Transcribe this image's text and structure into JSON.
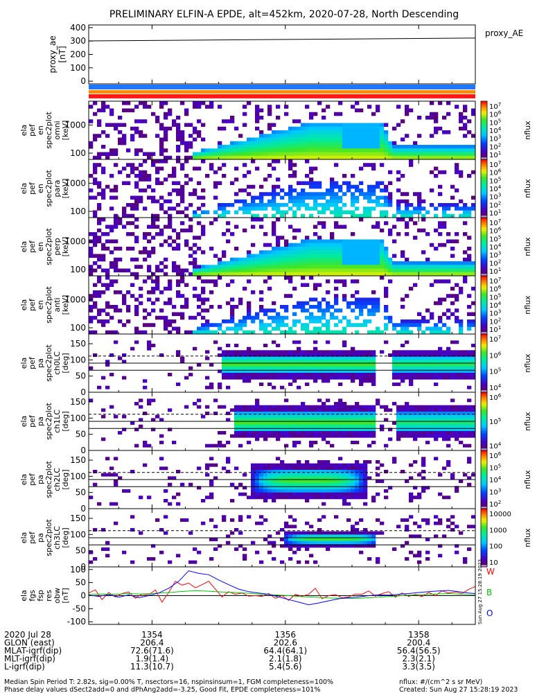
{
  "title": "PRELIMINARY ELFIN-A EPDE, alt=452km, 2020-07-28, North Descending",
  "chart_data": [
    {
      "type": "line",
      "ylabel": [
        "proxy_ae",
        "[nT]"
      ],
      "ylim": [
        -20,
        420
      ],
      "yticks": [
        0,
        100,
        200,
        300,
        400
      ],
      "legend": "proxy_AE",
      "x": [
        1353.05,
        1358.85
      ],
      "values": [
        301,
        322
      ],
      "grid": false
    },
    {
      "type": "heatmap",
      "ylabel": [
        "ela",
        "pef",
        "en",
        "spec2plot",
        "omni",
        "[keV]"
      ],
      "yscale": "log",
      "ylim": [
        60,
        7000
      ],
      "yticks": [
        100,
        1000
      ],
      "zlabel": "nflux",
      "zscale": "log",
      "zlim": [
        10,
        10000000
      ],
      "cbar_ticks": [
        "10^1",
        "10^2",
        "10^3",
        "10^4",
        "10^5",
        "10^6",
        "10^7"
      ]
    },
    {
      "type": "heatmap",
      "ylabel": [
        "ela",
        "pef",
        "en",
        "spec2plot",
        "para",
        "[keV]"
      ],
      "yscale": "log",
      "ylim": [
        60,
        7000
      ],
      "yticks": [
        100,
        1000
      ],
      "zlabel": "nflux",
      "zscale": "log",
      "zlim": [
        10,
        10000000
      ],
      "cbar_ticks": [
        "10^1",
        "10^2",
        "10^3",
        "10^4",
        "10^5",
        "10^6",
        "10^7"
      ]
    },
    {
      "type": "heatmap",
      "ylabel": [
        "ela",
        "pef",
        "en",
        "spec2plot",
        "perp",
        "[keV]"
      ],
      "yscale": "log",
      "ylim": [
        60,
        7000
      ],
      "yticks": [
        100,
        1000
      ],
      "zlabel": "nflux",
      "zscale": "log",
      "zlim": [
        10,
        10000000
      ],
      "cbar_ticks": [
        "10^1",
        "10^2",
        "10^3",
        "10^4",
        "10^5",
        "10^6",
        "10^7"
      ]
    },
    {
      "type": "heatmap",
      "ylabel": [
        "ela",
        "pef",
        "en",
        "spec2plot",
        "anti",
        "[keV]"
      ],
      "yscale": "log",
      "ylim": [
        60,
        7000
      ],
      "yticks": [
        100,
        1000
      ],
      "zlabel": "nflux",
      "zscale": "log",
      "zlim": [
        10,
        10000000
      ],
      "cbar_ticks": [
        "10^1",
        "10^2",
        "10^3",
        "10^4",
        "10^5",
        "10^6",
        "10^7"
      ]
    },
    {
      "type": "heatmap",
      "ylabel": [
        "ela",
        "pef",
        "pa",
        "spec2plot",
        "ch0LC",
        "[deg]"
      ],
      "ylim": [
        0,
        180
      ],
      "yticks": [
        0,
        50,
        100,
        150
      ],
      "zlabel": "nflux",
      "zscale": "log",
      "zlim": [
        10000,
        10000000
      ],
      "cbar_ticks": [
        "10^4",
        "10^5",
        "10^6",
        "10^7"
      ]
    },
    {
      "type": "heatmap",
      "ylabel": [
        "ela",
        "pef",
        "pa",
        "spec2plot",
        "ch1LC",
        "[deg]"
      ],
      "ylim": [
        0,
        180
      ],
      "yticks": [
        0,
        50,
        100,
        150
      ],
      "zlabel": "nflux",
      "zscale": "log",
      "zlim": [
        1000,
        1000000
      ],
      "cbar_ticks": [
        "10^4",
        "10^5",
        "10^6"
      ]
    },
    {
      "type": "heatmap",
      "ylabel": [
        "ela",
        "pef",
        "pa",
        "spec2plot",
        "ch2LC",
        "[deg]"
      ],
      "ylim": [
        0,
        180
      ],
      "yticks": [
        0,
        50,
        100,
        150
      ],
      "zlabel": "nflux",
      "zscale": "log",
      "zlim": [
        100,
        1000000
      ],
      "cbar_ticks": [
        "10^2",
        "10^3",
        "10^4",
        "10^5",
        "10^6"
      ]
    },
    {
      "type": "heatmap",
      "ylabel": [
        "ela",
        "pef",
        "pa",
        "spec2plot",
        "ch3LC",
        "[deg]"
      ],
      "ylim": [
        0,
        180
      ],
      "yticks": [
        0,
        50,
        100,
        150
      ],
      "zlabel": "nflux",
      "zscale": "log",
      "zlim": [
        10,
        10000
      ],
      "cbar_ticks": [
        "10",
        "100",
        "1000",
        "10000"
      ]
    },
    {
      "type": "line",
      "ylabel": [
        "ela",
        "fgs",
        "fsp",
        "res",
        "obw",
        "[nT]"
      ],
      "ylim": [
        -110,
        110
      ],
      "yticks": [
        -100,
        -50,
        0,
        50,
        100
      ],
      "series": [
        {
          "name": "W",
          "color": "#ff0000",
          "x": [
            1353.05,
            1353.15,
            1353.25,
            1353.35,
            1353.45,
            1353.55,
            1353.65,
            1353.75,
            1353.85,
            1353.95,
            1354.05,
            1354.15,
            1354.25,
            1354.35,
            1354.45,
            1354.55,
            1354.65,
            1354.75,
            1354.85,
            1354.95,
            1355.05,
            1355.15,
            1355.25,
            1355.35,
            1355.45,
            1355.55,
            1355.65,
            1355.75,
            1355.85,
            1355.95,
            1356.05,
            1356.15,
            1356.25,
            1356.35,
            1356.45,
            1356.55,
            1356.65,
            1356.75,
            1356.85,
            1356.95,
            1357.05,
            1357.15,
            1357.25,
            1357.35,
            1357.45,
            1357.55,
            1357.65,
            1357.75,
            1357.85,
            1357.95,
            1358.05,
            1358.15,
            1358.25,
            1358.35,
            1358.45,
            1358.55,
            1358.65,
            1358.75,
            1358.85
          ],
          "values": [
            10,
            22,
            -15,
            12,
            -5,
            8,
            14,
            -10,
            6,
            3,
            22,
            -25,
            12,
            55,
            40,
            48,
            30,
            42,
            55,
            25,
            -5,
            15,
            5,
            10,
            -2,
            0,
            -3,
            8,
            -10,
            0,
            -18,
            5,
            -2,
            5,
            28,
            -12,
            0,
            4,
            -8,
            -5,
            6,
            5,
            18,
            -2,
            8,
            15,
            -6,
            10,
            -3,
            5,
            -4,
            12,
            0,
            18,
            10,
            14,
            8,
            24,
            35
          ]
        },
        {
          "name": "B",
          "color": "#00c800",
          "x": [
            1353.05,
            1353.25,
            1353.45,
            1353.65,
            1353.85,
            1354.05,
            1354.25,
            1354.45,
            1354.65,
            1354.85,
            1355.05,
            1355.25,
            1355.45,
            1355.65,
            1355.85,
            1356.05,
            1356.25,
            1356.45,
            1356.65,
            1356.85,
            1357.05,
            1357.25,
            1357.45,
            1357.65,
            1357.85,
            1358.05,
            1358.25,
            1358.45,
            1358.65,
            1358.85
          ],
          "values": [
            4,
            6,
            5,
            8,
            6,
            9,
            12,
            16,
            19,
            17,
            14,
            12,
            9,
            5,
            3,
            0,
            -4,
            -6,
            -9,
            -10,
            -11,
            -8,
            -5,
            -2,
            2,
            4,
            6,
            8,
            5,
            3
          ]
        },
        {
          "name": "O",
          "color": "#0000ff",
          "x": [
            1353.05,
            1353.2,
            1353.35,
            1353.5,
            1353.65,
            1353.8,
            1353.95,
            1354.1,
            1354.25,
            1354.4,
            1354.55,
            1354.7,
            1354.85,
            1355.0,
            1355.15,
            1355.3,
            1355.45,
            1355.6,
            1355.75,
            1355.9,
            1356.05,
            1356.2,
            1356.35,
            1356.5,
            1356.65,
            1356.8,
            1356.95,
            1357.1,
            1357.25,
            1357.4,
            1357.55,
            1357.7,
            1357.85,
            1358.0,
            1358.15,
            1358.3,
            1358.45,
            1358.6,
            1358.75,
            1358.85
          ],
          "values": [
            2,
            -3,
            4,
            -6,
            3,
            -8,
            0,
            10,
            28,
            55,
            95,
            85,
            80,
            60,
            42,
            25,
            15,
            10,
            5,
            -5,
            -15,
            -25,
            -35,
            -28,
            -20,
            -12,
            -8,
            -5,
            0,
            3,
            2,
            5,
            8,
            12,
            15,
            18,
            20,
            15,
            10,
            8
          ]
        }
      ]
    }
  ],
  "colorbar_ticks": {
    "p1": [
      "10^7",
      "10^6",
      "10^5",
      "10^4",
      "10^3",
      "10^2",
      "10^1"
    ],
    "p2": [
      "10^7",
      "10^6",
      "10^5",
      "10^4",
      "10^3",
      "10^2",
      "10^1"
    ],
    "p3": [
      "10^7",
      "10^6",
      "10^5",
      "10^4",
      "10^3",
      "10^2",
      "10^1"
    ],
    "p4": [
      "10^7",
      "10^6",
      "10^5",
      "10^4",
      "10^3",
      "10^2",
      "10^1"
    ],
    "p5": [
      "10^7",
      "10^6",
      "10^5",
      "10^4"
    ],
    "p6": [
      "10^6",
      "10^5",
      "10^4"
    ],
    "p7": [
      "10^6",
      "10^5",
      "10^4",
      "10^3",
      "10^2"
    ],
    "p8": [
      "10000",
      "1000",
      "100",
      "10"
    ]
  },
  "colorbar_label": "nflux",
  "ephemeris": {
    "rows": [
      {
        "label": "2020 Jul 28",
        "values": [
          "1354",
          "1356",
          "1358"
        ]
      },
      {
        "label": "GLON (east)",
        "values": [
          "206.4",
          "202.6",
          "200.4"
        ]
      },
      {
        "label": "MLAT-igrf(dip)",
        "values": [
          "72.6(71.6)",
          "64.4(64.1)",
          "56.4(56.5)"
        ]
      },
      {
        "label": "MLT-igrf(dip)",
        "values": [
          "1.9(1.4)",
          "2.1(1.8)",
          "2.3(2.1)"
        ]
      },
      {
        "label": "L-igrf(dip)",
        "values": [
          "11.3(10.7)",
          "5.4(5.6)",
          "3.3(3.5)"
        ]
      }
    ]
  },
  "footer": {
    "left_line1": "Median Spin Period T: 2.82s, sig=0.00% T, nsectors=16, nspinsinsum=1, FGM completeness=100%",
    "left_line2": "Phase delay values dSect2add=0 and dPhAng2add=-3.25, Good Fit, EPDE completeness=101%",
    "right_line1": "nflux: #/(cm^2 s sr MeV)",
    "right_line2": "Created: Sun Aug 27 15:28:19 2023",
    "vertical_stamp": "Sun Aug 27 15:28:19 2023"
  }
}
